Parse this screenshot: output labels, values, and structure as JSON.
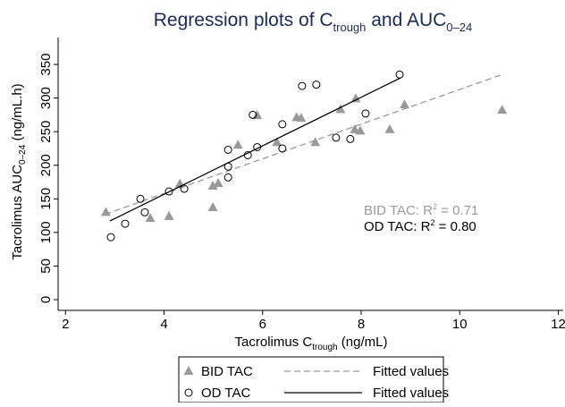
{
  "chart_data": {
    "type": "scatter",
    "title": [
      "Regression plots of C",
      "trough",
      " and AUC",
      "0–24"
    ],
    "xlabel": [
      "Tacrolimus C",
      "trough",
      " (ng/mL)"
    ],
    "ylabel": [
      "Tacrolimus AUC",
      "0–24",
      " (ng/mL.h)"
    ],
    "xlim": [
      1.85,
      12.1
    ],
    "ylim": [
      -16,
      390
    ],
    "xticks": [
      2,
      4,
      6,
      8,
      10,
      12
    ],
    "yticks": [
      0,
      50,
      100,
      150,
      200,
      250,
      300,
      350
    ],
    "grid": false,
    "series": [
      {
        "name": "BID TAC",
        "type": "scatter",
        "marker": "triangle",
        "color": "#999999",
        "x": [
          2.82,
          3.72,
          4.1,
          4.32,
          4.99,
          4.99,
          5.1,
          5.5,
          5.89,
          6.29,
          6.69,
          6.78,
          7.07,
          7.58,
          7.89,
          7.87,
          7.98,
          8.58,
          8.88,
          10.86
        ],
        "values": [
          130,
          121,
          124,
          172,
          137,
          169,
          173,
          230,
          274,
          234,
          271,
          270,
          234,
          283,
          299,
          253,
          251,
          253,
          290,
          282
        ]
      },
      {
        "name": "Fitted values",
        "type": "line",
        "dashed": true,
        "color": "#999999",
        "x": [
          2.8,
          10.9
        ],
        "values": [
          127,
          336
        ]
      },
      {
        "name": "OD TAC",
        "type": "scatter",
        "marker": "circle",
        "color": "#000000",
        "x": [
          2.92,
          3.21,
          3.52,
          3.61,
          4.1,
          4.41,
          5.3,
          5.3,
          5.3,
          5.7,
          5.8,
          5.89,
          6.4,
          6.4,
          6.8,
          7.09,
          7.49,
          7.78,
          8.09,
          8.78
        ],
        "values": [
          93,
          113,
          150,
          130,
          161,
          165,
          223,
          198,
          182,
          215,
          275,
          227,
          261,
          225,
          318,
          320,
          241,
          239,
          277,
          335
        ]
      },
      {
        "name": "Fitted values",
        "type": "line",
        "dashed": false,
        "color": "#000000",
        "x": [
          2.9,
          8.8
        ],
        "values": [
          117,
          330
        ]
      }
    ],
    "annotations": [
      {
        "parts": [
          "BID TAC: R",
          "2",
          " = 0.71"
        ],
        "color": "#999999"
      },
      {
        "parts": [
          "OD TAC: R",
          "2",
          " = 0.80"
        ],
        "color": "#000000"
      }
    ]
  }
}
